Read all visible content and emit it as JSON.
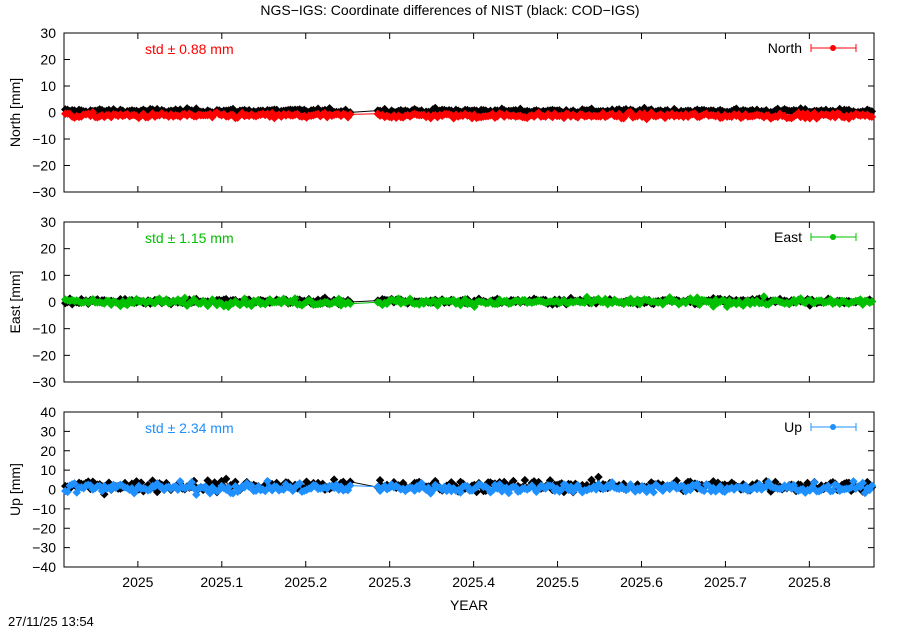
{
  "title": "NGS−IGS: Coordinate differences of NIST (black: COD−IGS)",
  "timestamp": "27/11/25 13:54",
  "colors": {
    "cod": "#000000",
    "north": "#ff0000",
    "east": "#00c000",
    "up": "#1e90ff"
  },
  "chart_data": [
    {
      "type": "scatter",
      "panel": "North",
      "ylabel": "North [mm]",
      "ylim": [
        -30,
        30
      ],
      "yticks": [
        "30",
        "20",
        "10",
        "0",
        "−10",
        "−20",
        "−30"
      ],
      "std_label": "std ± 0.88 mm",
      "legend": "North",
      "series": [
        {
          "name": "COD−IGS",
          "color": "#000000",
          "mean": 0.6,
          "spread": 0.7
        },
        {
          "name": "North",
          "color": "#ff0000",
          "mean": -1.2,
          "spread": 0.88
        }
      ]
    },
    {
      "type": "scatter",
      "panel": "East",
      "ylabel": "East [mm]",
      "ylim": [
        -30,
        30
      ],
      "yticks": [
        "30",
        "20",
        "10",
        "0",
        "−10",
        "−20",
        "−30"
      ],
      "std_label": "std ± 1.15 mm",
      "legend": "East",
      "series": [
        {
          "name": "COD−IGS",
          "color": "#000000",
          "mean": 0.3,
          "spread": 0.9
        },
        {
          "name": "East",
          "color": "#00c000",
          "mean": 0.0,
          "spread": 1.15
        }
      ]
    },
    {
      "type": "scatter",
      "panel": "Up",
      "ylabel": "Up [mm]",
      "ylim": [
        -40,
        40
      ],
      "yticks": [
        "40",
        "30",
        "20",
        "10",
        "0",
        "−10",
        "−20",
        "−30",
        "−40"
      ],
      "std_label": "std ± 2.34 mm",
      "legend": "Up",
      "series": [
        {
          "name": "COD−IGS",
          "color": "#000000",
          "mean": 2.0,
          "spread": 2.6
        },
        {
          "name": "Up",
          "color": "#1e90ff",
          "mean": 0.8,
          "spread": 2.34
        }
      ]
    }
  ],
  "xaxis": {
    "label": "YEAR",
    "xlim": [
      2024.912,
      2025.877
    ],
    "ticks": [
      2025,
      2025.1,
      2025.2,
      2025.3,
      2025.4,
      2025.5,
      2025.6,
      2025.7,
      2025.8
    ],
    "tick_labels": [
      "2025",
      "2025.1",
      "2025.2",
      "2025.3",
      "2025.4",
      "2025.5",
      "2025.6",
      "2025.7",
      "2025.8"
    ]
  }
}
